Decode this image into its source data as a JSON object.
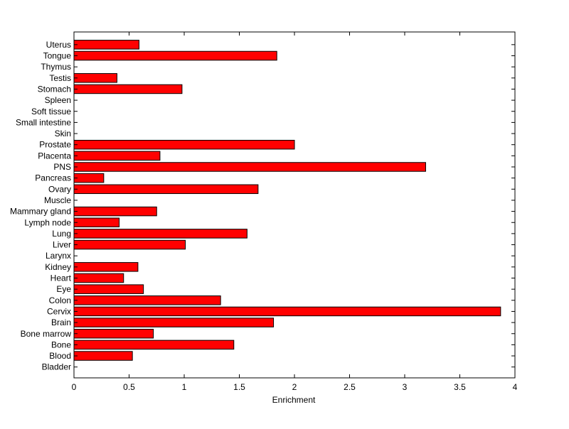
{
  "chart_data": {
    "type": "bar",
    "orientation": "horizontal",
    "xlabel": "Enrichment",
    "xlim": [
      0,
      4
    ],
    "xticks": [
      0,
      0.5,
      1,
      1.5,
      2,
      2.5,
      3,
      3.5,
      4
    ],
    "xtick_labels": [
      "0",
      "0.5",
      "1",
      "1.5",
      "2",
      "2.5",
      "3",
      "3.5",
      "4"
    ],
    "grid": false,
    "bar_color": "#ff0000",
    "bar_edge_color": "#000000",
    "categories": [
      "Bladder",
      "Blood",
      "Bone",
      "Bone marrow",
      "Brain",
      "Cervix",
      "Colon",
      "Eye",
      "Heart",
      "Kidney",
      "Larynx",
      "Liver",
      "Lung",
      "Lymph node",
      "Mammary gland",
      "Muscle",
      "Ovary",
      "Pancreas",
      "PNS",
      "Placenta",
      "Prostate",
      "Skin",
      "Small intestine",
      "Soft tissue",
      "Spleen",
      "Stomach",
      "Testis",
      "Thymus",
      "Tongue",
      "Uterus"
    ],
    "values": [
      0,
      0.53,
      1.45,
      0.72,
      1.81,
      3.87,
      1.33,
      0.63,
      0.45,
      0.58,
      0,
      1.01,
      1.57,
      0.41,
      0.75,
      0,
      1.67,
      0.27,
      3.19,
      0.78,
      2.0,
      0,
      0,
      0,
      0,
      0.98,
      0.39,
      0,
      1.84,
      0.59
    ]
  }
}
